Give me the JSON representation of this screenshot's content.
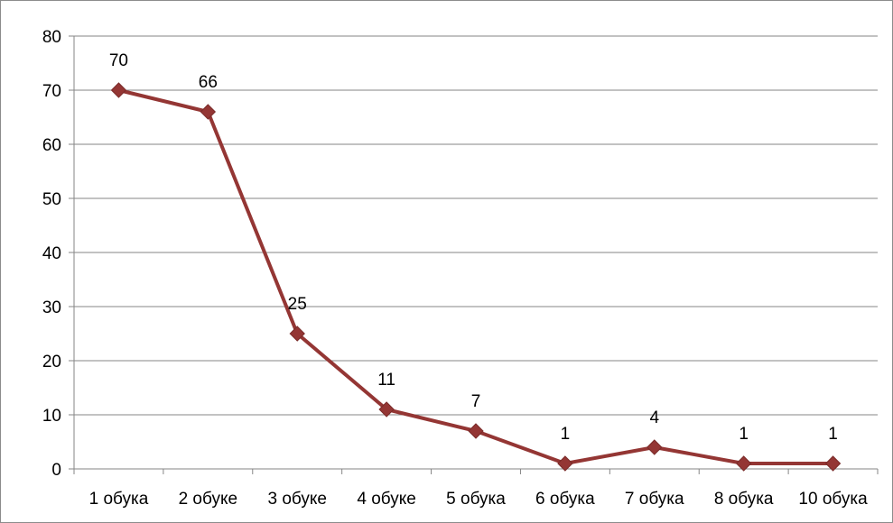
{
  "chart_data": {
    "type": "line",
    "title": "",
    "xlabel": "",
    "ylabel": "",
    "categories": [
      "1 обука",
      "2 обуке",
      "3 обуке",
      "4 обуке",
      "5 обука",
      "6 обука",
      "7 обука",
      "8 обука",
      "10 обука"
    ],
    "series": [
      {
        "values": [
          70,
          66,
          25,
          11,
          7,
          1,
          4,
          1,
          1
        ],
        "color": "#943634"
      }
    ],
    "ylim": [
      0,
      80
    ],
    "yticks": [
      "0",
      "10",
      "20",
      "30",
      "40",
      "50",
      "60",
      "70",
      "80"
    ],
    "data_labels": [
      "70",
      "66",
      "25",
      "11",
      "7",
      "1",
      "4",
      "1",
      "1"
    ],
    "grid": true,
    "legend": "none",
    "marker": "diamond",
    "gridline_color": "#868686"
  }
}
